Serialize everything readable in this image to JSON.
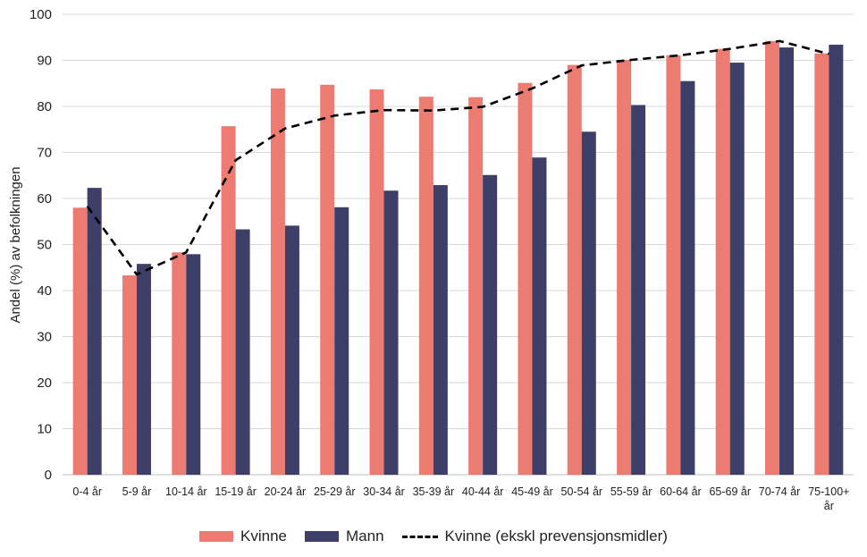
{
  "colors": {
    "kvinne": "#ec7b72",
    "mann": "#3e3f68",
    "line": "#000000",
    "grid": "#d9d9d9"
  },
  "chart_data": {
    "type": "bar",
    "categories": [
      "0-4 år",
      "5-9 år",
      "10-14 år",
      "15-19 år",
      "20-24 år",
      "25-29 år",
      "30-34 år",
      "35-39 år",
      "40-44 år",
      "45-49 år",
      "50-54 år",
      "55-59 år",
      "60-64 år",
      "65-69 år",
      "70-74 år",
      "75-100+ år"
    ],
    "category_lines": [
      [
        "0-4 år"
      ],
      [
        "5-9 år"
      ],
      [
        "10-14 år"
      ],
      [
        "15-19 år"
      ],
      [
        "20-24 år"
      ],
      [
        "25-29 år"
      ],
      [
        "30-34 år"
      ],
      [
        "35-39 år"
      ],
      [
        "40-44 år"
      ],
      [
        "45-49 år"
      ],
      [
        "50-54 år"
      ],
      [
        "55-59 år"
      ],
      [
        "60-64 år"
      ],
      [
        "65-69 år"
      ],
      [
        "70-74 år"
      ],
      [
        "75-100+",
        "år"
      ]
    ],
    "series": [
      {
        "name": "Kvinne",
        "type": "bar",
        "values": [
          58,
          43.3,
          48.3,
          75.7,
          83.9,
          84.7,
          83.7,
          82.1,
          82,
          85.1,
          89,
          90.1,
          91.1,
          92.5,
          94.2,
          91.5
        ]
      },
      {
        "name": "Mann",
        "type": "bar",
        "values": [
          62.3,
          45.8,
          47.9,
          53.3,
          54.1,
          58.1,
          61.7,
          62.9,
          65.1,
          68.9,
          74.5,
          80.3,
          85.5,
          89.5,
          92.8,
          93.4
        ]
      },
      {
        "name": "Kvinne (ekskl prevensjonsmidler)",
        "type": "line",
        "style": "dashed",
        "values": [
          58.3,
          43.5,
          48.3,
          68.3,
          75.2,
          78,
          79.2,
          79.1,
          79.9,
          83.9,
          88.9,
          90.1,
          91.1,
          92.5,
          94.2,
          91.4
        ]
      }
    ],
    "ylabel": "Andel (%) av befolkningen",
    "xlabel": "",
    "ylim": [
      0,
      100
    ],
    "yticks": [
      0,
      10,
      20,
      30,
      40,
      50,
      60,
      70,
      80,
      90,
      100
    ],
    "grid": true,
    "legend": "bottom"
  }
}
